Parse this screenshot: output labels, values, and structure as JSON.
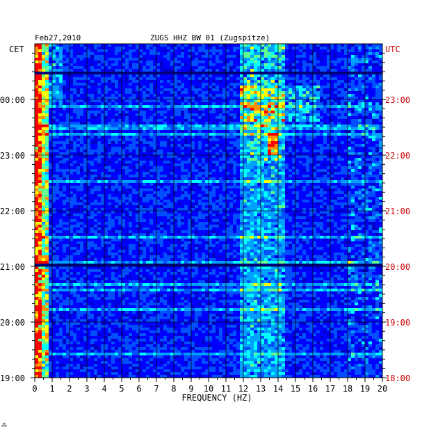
{
  "header": {
    "date": "Feb27,2010",
    "station": "ZUGS HHZ BW 01 (Zugspitze)",
    "left_tz": "CET",
    "right_tz": "UTC"
  },
  "footer_mark": "⁂",
  "chart_data": {
    "type": "heatmap",
    "title": "ZUGS HHZ BW 01 (Zugspitze)",
    "date": "Feb27,2010",
    "xlabel": "FREQUENCY (HZ)",
    "xlim": [
      0,
      20
    ],
    "x_ticks": [
      "0",
      "1",
      "2",
      "3",
      "4",
      "5",
      "6",
      "7",
      "8",
      "9",
      "10",
      "11",
      "12",
      "13",
      "14",
      "15",
      "16",
      "17",
      "18",
      "19",
      "20"
    ],
    "y_left_label": "CET",
    "y_left_ticks": [
      "19:00",
      "20:00",
      "21:00",
      "22:00",
      "23:00",
      "00:00"
    ],
    "y_right_label": "UTC",
    "y_right_ticks": [
      "18:00",
      "19:00",
      "20:00",
      "21:00",
      "22:00",
      "23:00"
    ],
    "time_range_utc": [
      "18:00",
      "24:00"
    ],
    "colorscale": [
      "#00007a",
      "#0000c8",
      "#0000ff",
      "#0050ff",
      "#00a0ff",
      "#00ffff",
      "#60ff90",
      "#ffff00",
      "#ff9000",
      "#ff0000"
    ],
    "grid": true,
    "features": [
      {
        "desc": "strong low-frequency energy",
        "freq_hz": [
          0.2,
          0.6
        ]
      },
      {
        "desc": "band of elevated energy",
        "freq_hz": [
          12.0,
          14.2
        ]
      },
      {
        "desc": "bright burst",
        "time_utc": "22:35",
        "freq_hz": [
          13.5,
          14.0
        ]
      },
      {
        "desc": "dark gap",
        "time_utc": "23:30"
      },
      {
        "desc": "dark gap",
        "time_utc": "20:00"
      }
    ]
  }
}
